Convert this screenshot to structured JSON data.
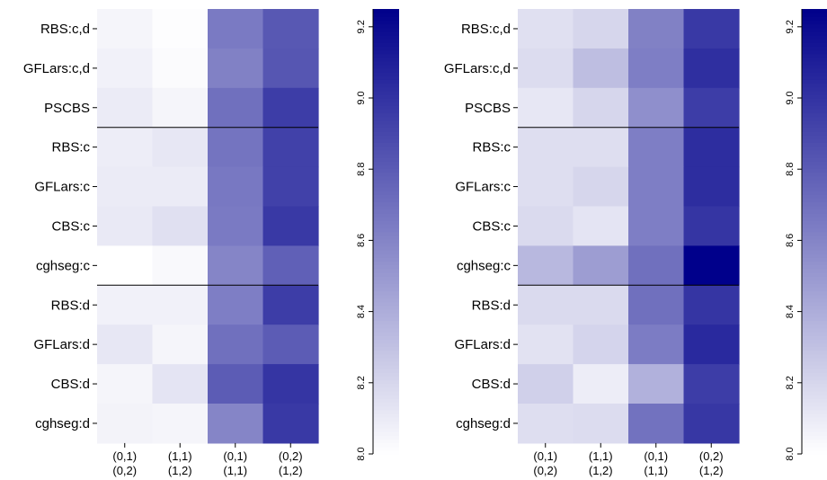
{
  "chart_data": [
    {
      "type": "heatmap",
      "title": "",
      "xlabel": "",
      "ylabel": "",
      "rows": [
        "RBS:c,d",
        "GFLars:c,d",
        "PSCBS",
        "RBS:c",
        "GFLars:c",
        "CBS:c",
        "cghseg:c",
        "RBS:d",
        "GFLars:d",
        "CBS:d",
        "cghseg:d"
      ],
      "columns": [
        {
          "line1": "(0,1)",
          "line2": "(0,2)"
        },
        {
          "line1": "(1,1)",
          "line2": "(1,2)"
        },
        {
          "line1": "(0,1)",
          "line2": "(1,1)"
        },
        {
          "line1": "(0,2)",
          "line2": "(1,2)"
        }
      ],
      "group_separators_after_row": [
        2,
        6
      ],
      "values": [
        [
          8.05,
          8.01,
          8.65,
          8.82
        ],
        [
          8.07,
          8.02,
          8.62,
          8.83
        ],
        [
          8.1,
          8.05,
          8.7,
          8.95
        ],
        [
          8.09,
          8.12,
          8.68,
          8.93
        ],
        [
          8.1,
          8.1,
          8.66,
          8.93
        ],
        [
          8.11,
          8.15,
          8.65,
          8.97
        ],
        [
          8.0,
          8.03,
          8.6,
          8.78
        ],
        [
          8.07,
          8.07,
          8.63,
          8.95
        ],
        [
          8.12,
          8.05,
          8.7,
          8.8
        ],
        [
          8.05,
          8.13,
          8.8,
          8.99
        ],
        [
          8.06,
          8.05,
          8.6,
          8.97
        ]
      ],
      "colorbar": {
        "range": [
          8.0,
          9.25
        ],
        "ticks": [
          "8.0",
          "8.2",
          "8.4",
          "8.6",
          "8.8",
          "9.0",
          "9.2"
        ],
        "low_color": "#ffffff",
        "high_color": "#00008b"
      }
    },
    {
      "type": "heatmap",
      "title": "",
      "xlabel": "",
      "ylabel": "",
      "rows": [
        "RBS:c,d",
        "GFLars:c,d",
        "PSCBS",
        "RBS:c",
        "GFLars:c",
        "CBS:c",
        "cghseg:c",
        "RBS:d",
        "GFLars:d",
        "CBS:d",
        "cghseg:d"
      ],
      "columns": [
        {
          "line1": "(0,1)",
          "line2": "(0,2)"
        },
        {
          "line1": "(1,1)",
          "line2": "(1,2)"
        },
        {
          "line1": "(0,1)",
          "line2": "(1,1)"
        },
        {
          "line1": "(0,2)",
          "line2": "(1,2)"
        }
      ],
      "group_separators_after_row": [
        2,
        6
      ],
      "values": [
        [
          8.15,
          8.2,
          8.62,
          8.97
        ],
        [
          8.17,
          8.32,
          8.63,
          9.02
        ],
        [
          8.12,
          8.2,
          8.55,
          8.95
        ],
        [
          8.16,
          8.16,
          8.63,
          9.03
        ],
        [
          8.16,
          8.2,
          8.63,
          9.03
        ],
        [
          8.18,
          8.13,
          8.63,
          8.99
        ],
        [
          8.35,
          8.48,
          8.7,
          9.25
        ],
        [
          8.18,
          8.18,
          8.7,
          8.99
        ],
        [
          8.14,
          8.21,
          8.64,
          9.05
        ],
        [
          8.23,
          8.09,
          8.38,
          8.95
        ],
        [
          8.16,
          8.17,
          8.69,
          8.98
        ]
      ],
      "colorbar": {
        "range": [
          8.0,
          9.25
        ],
        "ticks": [
          "8.0",
          "8.2",
          "8.4",
          "8.6",
          "8.8",
          "9.0",
          "9.2"
        ],
        "low_color": "#ffffff",
        "high_color": "#00008b"
      }
    }
  ]
}
